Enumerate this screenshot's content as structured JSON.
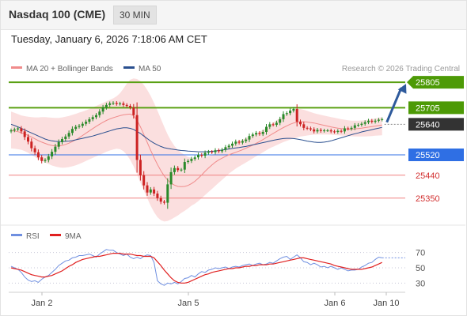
{
  "header": {
    "symbol": "Nasdaq 100 (CME)",
    "interval": "30 MIN"
  },
  "timestamp": "Tuesday, January 6, 2026 7:18:06 AM CET",
  "colors": {
    "support_line": "#2f6fe4",
    "resistance_line": "#5aa013",
    "target_label": "#4d9a06",
    "last_price_label": "#333333",
    "bollinger_band": "#f9d4d4",
    "ma20": "#f08b8b",
    "ma50": "#2a4f8f",
    "arrow": "#2e5a9c",
    "up_candle": "#2a8a2a",
    "down_candle": "#cc2222",
    "rsi": "#6f8fe0",
    "rsi_ma": "#e02020"
  },
  "chart_data": [
    {
      "type": "candlestick",
      "legend": [
        {
          "name": "MA 20 + Bollinger Bands",
          "color": "#f08b8b"
        },
        {
          "name": "MA 50",
          "color": "#2a4f8f"
        }
      ],
      "credit": "Research © 2026 Trading Central",
      "ylim": [
        25250,
        25880
      ],
      "levels": [
        {
          "label": "25805",
          "value": 25805,
          "kind": "target"
        },
        {
          "label": "25705",
          "value": 25705,
          "kind": "resistance"
        },
        {
          "label": "25640",
          "value": 25640,
          "kind": "last_price"
        },
        {
          "label": "25520",
          "value": 25520,
          "kind": "pivot"
        },
        {
          "label": "25440",
          "value": 25440,
          "kind": "support"
        },
        {
          "label": "25350",
          "value": 25350,
          "kind": "support"
        }
      ],
      "close": [
        25616,
        25620,
        25624,
        25612,
        25590,
        25572,
        25546,
        25530,
        25510,
        25496,
        25500,
        25514,
        25532,
        25552,
        25570,
        25582,
        25592,
        25606,
        25622,
        25630,
        25634,
        25642,
        25650,
        25660,
        25668,
        25676,
        25690,
        25706,
        25716,
        25722,
        25724,
        25720,
        25722,
        25716,
        25712,
        25706,
        25676,
        25500,
        25440,
        25400,
        25372,
        25384,
        25368,
        25350,
        25336,
        25332,
        25404,
        25452,
        25468,
        25460,
        25462,
        25492,
        25496,
        25504,
        25510,
        25520,
        25516,
        25528,
        25532,
        25530,
        25538,
        25534,
        25540,
        25550,
        25556,
        25564,
        25572,
        25568,
        25574,
        25580,
        25594,
        25600,
        25606,
        25602,
        25610,
        25630,
        25640,
        25638,
        25646,
        25660,
        25680,
        25684,
        25694,
        25700,
        25650,
        25640,
        25626,
        25624,
        25620,
        25612,
        25618,
        25614,
        25616,
        25616,
        25612,
        25610,
        25614,
        25612,
        25624,
        25622,
        25626,
        25636,
        25638,
        25642,
        25648,
        25654,
        25650,
        25654,
        25658,
        25660
      ],
      "ma50": [
        25640,
        25635,
        25630,
        25624,
        25618,
        25612,
        25606,
        25600,
        25594,
        25588,
        25582,
        25578,
        25575,
        25573,
        25572,
        25572,
        25573,
        25574,
        25576,
        25579,
        25582,
        25585,
        25588,
        25591,
        25594,
        25598,
        25602,
        25606,
        25610,
        25614,
        25618,
        25622,
        25624,
        25626,
        25626,
        25624,
        25620,
        25612,
        25604,
        25594,
        25584,
        25574,
        25566,
        25559,
        25553,
        25548,
        25545,
        25543,
        25541,
        25539,
        25537,
        25536,
        25535,
        25534,
        25533,
        25532,
        25532,
        25532,
        25533,
        25534,
        25535,
        25537,
        25539,
        25541,
        25543,
        25545,
        25547,
        25549,
        25551,
        25553,
        25556,
        25559,
        25562,
        25565,
        25568,
        25571,
        25574,
        25577,
        25580,
        25582,
        25584,
        25585,
        25585,
        25584,
        25582,
        25580,
        25577,
        25574,
        25572,
        25570,
        25569,
        25569,
        25570,
        25572,
        25575,
        25579,
        25583,
        25587,
        25591,
        25595,
        25599,
        25603,
        25606,
        25610,
        25613,
        25616,
        25619,
        25622,
        25625,
        25628
      ],
      "ma20": [
        25616,
        25614,
        25611,
        25607,
        25602,
        25596,
        25590,
        25583,
        25576,
        25570,
        25565,
        25560,
        25557,
        25555,
        25555,
        25557,
        25561,
        25566,
        25572,
        25579,
        25587,
        25596,
        25605,
        25614,
        25623,
        25632,
        25640,
        25648,
        25655,
        25661,
        25666,
        25670,
        25674,
        25677,
        25679,
        25680,
        25674,
        25656,
        25630,
        25600,
        25569,
        25538,
        25509,
        25482,
        25458,
        25437,
        25421,
        25409,
        25401,
        25396,
        25395,
        25396,
        25400,
        25407,
        25416,
        25428,
        25441,
        25455,
        25468,
        25480,
        25491,
        25500,
        25507,
        25514,
        25520,
        25525,
        25530,
        25535,
        25540,
        25546,
        25552,
        25558,
        25565,
        25572,
        25580,
        25588,
        25596,
        25604,
        25612,
        25620,
        25627,
        25634,
        25640,
        25645,
        25648,
        25650,
        25650,
        25649,
        25647,
        25645,
        25642,
        25639,
        25636,
        25633,
        25630,
        25627,
        25625,
        25623,
        25622,
        25621,
        25621,
        25622,
        25623,
        25625,
        25627,
        25629,
        25631,
        25633,
        25635,
        25637
      ],
      "bb_upper": [
        25690,
        25685,
        25680,
        25675,
        25672,
        25670,
        25668,
        25667,
        25667,
        25668,
        25668,
        25667,
        25666,
        25665,
        25665,
        25667,
        25670,
        25673,
        25677,
        25681,
        25686,
        25690,
        25695,
        25700,
        25706,
        25712,
        25718,
        25724,
        25730,
        25736,
        25742,
        25750,
        25762,
        25780,
        25800,
        25815,
        25820,
        25818,
        25810,
        25795,
        25775,
        25752,
        25724,
        25694,
        25662,
        25630,
        25600,
        25575,
        25555,
        25540,
        25528,
        25519,
        25512,
        25508,
        25506,
        25506,
        25508,
        25511,
        25515,
        25520,
        25526,
        25533,
        25540,
        25547,
        25554,
        25561,
        25568,
        25574,
        25580,
        25586,
        25592,
        25598,
        25604,
        25610,
        25618,
        25626,
        25636,
        25646,
        25656,
        25664,
        25672,
        25680,
        25690,
        25696,
        25700,
        25700,
        25697,
        25693,
        25688,
        25684,
        25680,
        25677,
        25674,
        25671,
        25668,
        25666,
        25663,
        25660,
        25658,
        25656,
        25654,
        25654,
        25654,
        25655,
        25656,
        25658,
        25660,
        25663,
        25666,
        25668
      ],
      "bb_lower": [
        25545,
        25544,
        25542,
        25540,
        25535,
        25528,
        25520,
        25512,
        25504,
        25497,
        25490,
        25484,
        25478,
        25474,
        25471,
        25469,
        25470,
        25472,
        25475,
        25479,
        25484,
        25490,
        25496,
        25502,
        25508,
        25514,
        25520,
        25526,
        25532,
        25537,
        25541,
        25544,
        25542,
        25535,
        25520,
        25500,
        25475,
        25445,
        25410,
        25380,
        25350,
        25320,
        25295,
        25275,
        25263,
        25258,
        25260,
        25266,
        25274,
        25282,
        25292,
        25300,
        25310,
        25320,
        25328,
        25338,
        25350,
        25362,
        25374,
        25386,
        25398,
        25410,
        25422,
        25434,
        25446,
        25456,
        25466,
        25474,
        25482,
        25490,
        25498,
        25506,
        25514,
        25522,
        25530,
        25538,
        25546,
        25552,
        25558,
        25564,
        25570,
        25575,
        25580,
        25584,
        25588,
        25592,
        25594,
        25596,
        25598,
        25599,
        25600,
        25600,
        25600,
        25600,
        25599,
        25598,
        25597,
        25596,
        25595,
        25594,
        25593,
        25592,
        25592,
        25592,
        25592,
        25593,
        25594,
        25595,
        25596,
        25597
      ],
      "projection": {
        "from_value": 25648,
        "to_value": 25805
      }
    },
    {
      "type": "line",
      "legend": [
        {
          "name": "RSI",
          "color": "#6f8fe0"
        },
        {
          "name": "9MA",
          "color": "#e02020"
        }
      ],
      "yticks": [
        70,
        50,
        30
      ],
      "ylim": [
        20,
        80
      ],
      "x_tick_labels": [
        "Jan 2",
        "Jan 5",
        "Jan 6",
        "Jan 10"
      ],
      "rsi": [
        52,
        50,
        48,
        44,
        38,
        34,
        32,
        33,
        31,
        35,
        38,
        40,
        44,
        48,
        53,
        56,
        59,
        60,
        63,
        64,
        66,
        66,
        67,
        68,
        66,
        64,
        68,
        71,
        74,
        73,
        73,
        70,
        68,
        66,
        68,
        64,
        62,
        64,
        62,
        65,
        67,
        66,
        57,
        33,
        29,
        27,
        30,
        29,
        31,
        29,
        32,
        36,
        37,
        40,
        38,
        42,
        45,
        44,
        47,
        48,
        50,
        49,
        50,
        51,
        49,
        51,
        52,
        51,
        53,
        54,
        55,
        53,
        55,
        56,
        54,
        55,
        57,
        56,
        59,
        62,
        64,
        65,
        61,
        64,
        67,
        63,
        58,
        57,
        54,
        56,
        54,
        51,
        52,
        50,
        52,
        50,
        48,
        50,
        48,
        46,
        47,
        47,
        48,
        51,
        53,
        56,
        57,
        61,
        64,
        63
      ],
      "rsi_ma": [
        50,
        49,
        48,
        47,
        45,
        43,
        41,
        40,
        39,
        38,
        38,
        39,
        40,
        42,
        44,
        46,
        49,
        52,
        54,
        57,
        59,
        61,
        62,
        63,
        64,
        65,
        65,
        66,
        67,
        68,
        69,
        69,
        69,
        68,
        68,
        68,
        67,
        66,
        66,
        65,
        65,
        65,
        63,
        58,
        53,
        47,
        42,
        37,
        33,
        31,
        30,
        30,
        31,
        33,
        35,
        37,
        39,
        41,
        42,
        44,
        45,
        46,
        47,
        48,
        49,
        49,
        50,
        50,
        51,
        52,
        52,
        53,
        53,
        54,
        54,
        54,
        55,
        55,
        56,
        57,
        58,
        59,
        60,
        61,
        62,
        63,
        63,
        62,
        61,
        60,
        59,
        58,
        57,
        56,
        55,
        53,
        52,
        51,
        50,
        49,
        48,
        48,
        48,
        48,
        49,
        50,
        51,
        53,
        55,
        57
      ]
    }
  ]
}
